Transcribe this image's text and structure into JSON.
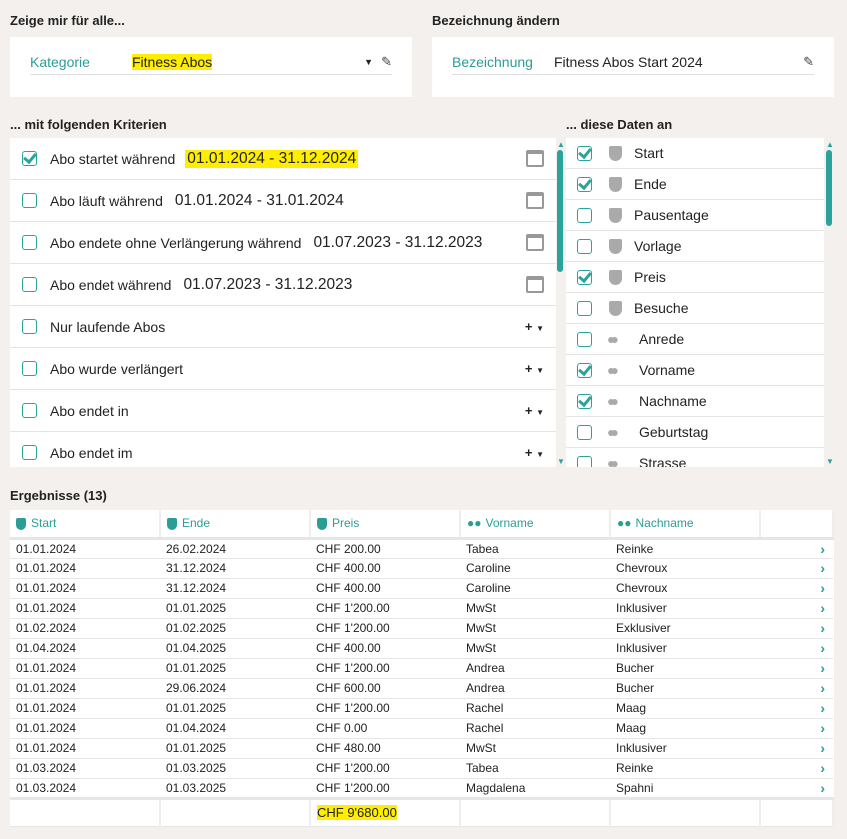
{
  "show_for": {
    "heading": "Zeige mir für alle...",
    "label": "Kategorie",
    "value": "Fitness Abos"
  },
  "rename": {
    "heading": "Bezeichnung ändern",
    "label": "Bezeichnung",
    "value": "Fitness Abos Start 2024"
  },
  "criteria": {
    "heading": "... mit folgenden Kriterien",
    "items": [
      {
        "label": "Abo startet während",
        "date": "01.01.2024 - 31.12.2024",
        "checked": true,
        "highlight": true,
        "type": "date"
      },
      {
        "label": "Abo läuft während",
        "date": "01.01.2024 - 31.01.2024",
        "checked": false,
        "type": "date"
      },
      {
        "label": "Abo endete ohne Verlängerung während",
        "date": "01.07.2023 - 31.12.2023",
        "checked": false,
        "type": "date"
      },
      {
        "label": "Abo endet während",
        "date": "01.07.2023 - 31.12.2023",
        "checked": false,
        "type": "date"
      },
      {
        "label": "Nur laufende Abos",
        "checked": false,
        "type": "plus"
      },
      {
        "label": "Abo wurde verlängert",
        "checked": false,
        "type": "plus"
      },
      {
        "label": "Abo endet in",
        "checked": false,
        "type": "plus"
      },
      {
        "label": "Abo endet im",
        "checked": false,
        "type": "plus"
      }
    ]
  },
  "fields": {
    "heading": "... diese Daten an",
    "items": [
      {
        "label": "Start",
        "checked": true,
        "icon": "shield-icon"
      },
      {
        "label": "Ende",
        "checked": true,
        "icon": "shield-icon"
      },
      {
        "label": "Pausentage",
        "checked": false,
        "icon": "shield-icon"
      },
      {
        "label": "Vorlage",
        "checked": false,
        "icon": "shield-icon"
      },
      {
        "label": "Preis",
        "checked": true,
        "icon": "shield-icon"
      },
      {
        "label": "Besuche",
        "checked": false,
        "icon": "shield-icon"
      },
      {
        "label": "Anrede",
        "checked": false,
        "icon": "people-icon"
      },
      {
        "label": "Vorname",
        "checked": true,
        "icon": "people-icon"
      },
      {
        "label": "Nachname",
        "checked": true,
        "icon": "people-icon"
      },
      {
        "label": "Geburtstag",
        "checked": false,
        "icon": "people-icon"
      },
      {
        "label": "Strasse",
        "checked": false,
        "icon": "people-icon"
      }
    ]
  },
  "results": {
    "heading": "Ergebnisse (13)",
    "columns": [
      {
        "label": "Start",
        "icon": "shield-icon"
      },
      {
        "label": "Ende",
        "icon": "shield-icon"
      },
      {
        "label": "Preis",
        "icon": "shield-icon"
      },
      {
        "label": "Vorname",
        "icon": "people-icon"
      },
      {
        "label": "Nachname",
        "icon": "people-icon"
      }
    ],
    "rows": [
      [
        "01.01.2024",
        "26.02.2024",
        "CHF 200.00",
        "Tabea",
        "Reinke"
      ],
      [
        "01.01.2024",
        "31.12.2024",
        "CHF 400.00",
        "Caroline",
        "Chevroux"
      ],
      [
        "01.01.2024",
        "31.12.2024",
        "CHF 400.00",
        "Caroline",
        "Chevroux"
      ],
      [
        "01.01.2024",
        "01.01.2025",
        "CHF 1'200.00",
        "MwSt",
        "Inklusiver"
      ],
      [
        "01.02.2024",
        "01.02.2025",
        "CHF 1'200.00",
        "MwSt",
        "Exklusiver"
      ],
      [
        "01.04.2024",
        "01.04.2025",
        "CHF 400.00",
        "MwSt",
        "Inklusiver"
      ],
      [
        "01.01.2024",
        "01.01.2025",
        "CHF 1'200.00",
        "Andrea",
        "Bucher"
      ],
      [
        "01.01.2024",
        "29.06.2024",
        "CHF 600.00",
        "Andrea",
        "Bucher"
      ],
      [
        "01.01.2024",
        "01.01.2025",
        "CHF 1'200.00",
        "Rachel",
        "Maag"
      ],
      [
        "01.01.2024",
        "01.04.2024",
        "CHF 0.00",
        "Rachel",
        "Maag"
      ],
      [
        "01.01.2024",
        "01.01.2025",
        "CHF 480.00",
        "MwSt",
        "Inklusiver"
      ],
      [
        "01.03.2024",
        "01.03.2025",
        "CHF 1'200.00",
        "Tabea",
        "Reinke"
      ],
      [
        "01.03.2024",
        "01.03.2025",
        "CHF 1'200.00",
        "Magdalena",
        "Spahni"
      ]
    ],
    "total": "CHF 9'680.00"
  },
  "colors": {
    "accent": "#2aa39a",
    "highlight": "#ffee00",
    "background": "#f3f0ed"
  }
}
